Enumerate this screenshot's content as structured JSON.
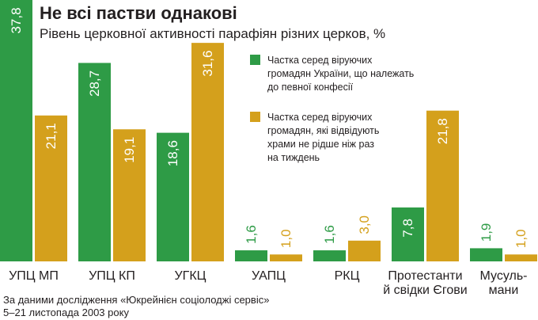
{
  "colors": {
    "series1": "#2e9b46",
    "series2": "#d4a01c"
  },
  "chart_data": {
    "type": "bar",
    "title": "Не всі пастви однакові",
    "subtitle": "Рівень церковної активності парафіян різних церков, %",
    "categories": [
      [
        "УПЦ МП"
      ],
      [
        "УПЦ КП"
      ],
      [
        "УГКЦ"
      ],
      [
        "УАПЦ"
      ],
      [
        "РКЦ"
      ],
      [
        "Протестанти",
        "й свідки Єгови"
      ],
      [
        "Мусуль-",
        "мани"
      ]
    ],
    "series": [
      {
        "name_lines": [
          "Частка серед віруючих",
          "громадян України, що належать",
          "до певної конфесії"
        ],
        "values": [
          37.8,
          28.7,
          18.6,
          1.6,
          1.6,
          7.8,
          1.9
        ],
        "labels": [
          "37,8",
          "28,7",
          "18,6",
          "1,6",
          "1,6",
          "7,8",
          "1,9"
        ]
      },
      {
        "name_lines": [
          "Частка серед віруючих",
          "громадян, які відвідують",
          "храми не рідше ніж раз",
          "на тиждень"
        ],
        "values": [
          21.1,
          19.1,
          31.6,
          1.0,
          3.0,
          21.8,
          1.0
        ],
        "labels": [
          "21,1",
          "19,1",
          "31,6",
          "1,0",
          "3,0",
          "21,8",
          "1,0"
        ]
      }
    ],
    "ylim": [
      0,
      37.8
    ],
    "source_lines": [
      "За даними дослідження «Юкрейнієн соціолоджі сервіс»",
      "5–21 листопада 2003 року"
    ]
  }
}
